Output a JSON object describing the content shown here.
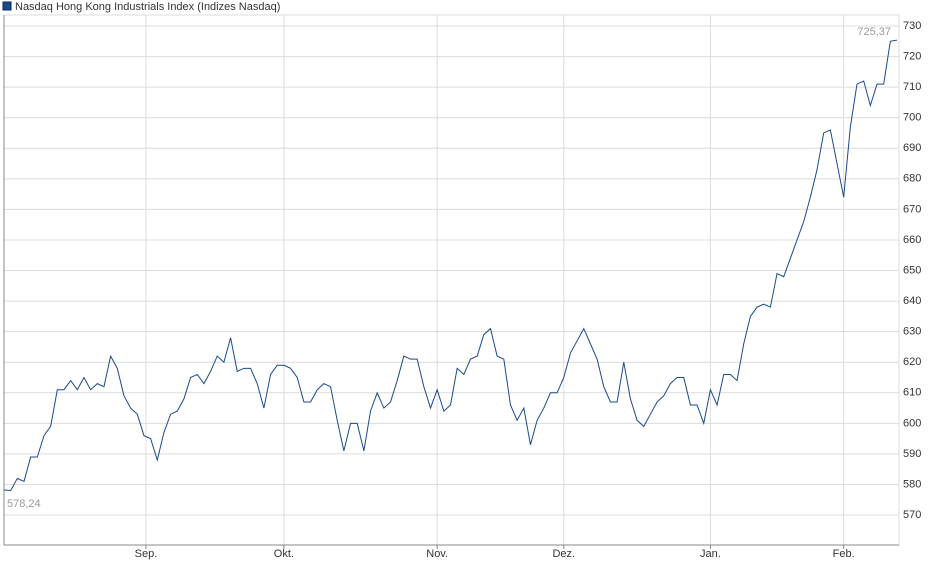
{
  "chart_data": {
    "type": "line",
    "series": [
      {
        "name": "Nasdaq Hong Kong Industrials Index  (Indizes Nasdaq)",
        "color": "#1a4a8a",
        "values": [
          578.24,
          578,
          582,
          581,
          589,
          589,
          596,
          599,
          611,
          611,
          614,
          611,
          615,
          611,
          613,
          612,
          622,
          618,
          609,
          605,
          603,
          596,
          595,
          588,
          597,
          603,
          604,
          608,
          615,
          616,
          613,
          617,
          622,
          620,
          628,
          617,
          618,
          618,
          613,
          605,
          616,
          619,
          619,
          618,
          615,
          607,
          607,
          611,
          613,
          612,
          601,
          591,
          600,
          600,
          591,
          604,
          610,
          605,
          607,
          614,
          622,
          621,
          621,
          612,
          605,
          611,
          604,
          606,
          618,
          616,
          621,
          622,
          629,
          631,
          622,
          621,
          606,
          601,
          605,
          593,
          601,
          605,
          610,
          610,
          615,
          623,
          627,
          631,
          626,
          621,
          612,
          607,
          607,
          620,
          608,
          601,
          599,
          603,
          607,
          609,
          613,
          615,
          615,
          606,
          606,
          600,
          611,
          606,
          616,
          616,
          614,
          626,
          635,
          638,
          639,
          638,
          649,
          648,
          654,
          660,
          666,
          674,
          683,
          695,
          696,
          685,
          674,
          697,
          711,
          712,
          704,
          711,
          711,
          725,
          725.37
        ]
      }
    ],
    "x": [
      0,
      1,
      2,
      3,
      4,
      5,
      6,
      7,
      8,
      9,
      10,
      11,
      12,
      13,
      14,
      15,
      16,
      17,
      18,
      19,
      20,
      21,
      22,
      23,
      24,
      25,
      26,
      27,
      28,
      29,
      30,
      31,
      32,
      33,
      34,
      35,
      36,
      37,
      38,
      39,
      40,
      41,
      42,
      43,
      44,
      45,
      46,
      47,
      48,
      49,
      50,
      51,
      52,
      53,
      54,
      55,
      56,
      57,
      58,
      59,
      60,
      61,
      62,
      63,
      64,
      65,
      66,
      67,
      68,
      69,
      70,
      71,
      72,
      73,
      74,
      75,
      76,
      77,
      78,
      79,
      80,
      81,
      82,
      83,
      84,
      85,
      86,
      87,
      88,
      89,
      90,
      91,
      92,
      93,
      94,
      95,
      96,
      97,
      98,
      99,
      100,
      101,
      102,
      103,
      104,
      105,
      106,
      107,
      108,
      109,
      110,
      111,
      112,
      113,
      114,
      115,
      116,
      117,
      118,
      119,
      120,
      121,
      122,
      123,
      124,
      125,
      126,
      127,
      128,
      129,
      130,
      131,
      132,
      133,
      134
    ],
    "first_label": "578,24",
    "last_label": "725,37",
    "xlim": [
      0,
      134
    ],
    "xticks": [
      {
        "value": 21.3,
        "label": "Sep."
      },
      {
        "value": 42,
        "label": "Okt."
      },
      {
        "value": 65,
        "label": "Nov."
      },
      {
        "value": 84,
        "label": "Dez."
      },
      {
        "value": 106,
        "label": "Jan."
      },
      {
        "value": 126,
        "label": "Feb."
      }
    ],
    "ylim": [
      560.2,
      733.6
    ],
    "yticks": [
      570,
      580,
      590,
      600,
      610,
      620,
      630,
      640,
      650,
      660,
      670,
      680,
      690,
      700,
      710,
      720,
      730
    ],
    "grid": true
  }
}
